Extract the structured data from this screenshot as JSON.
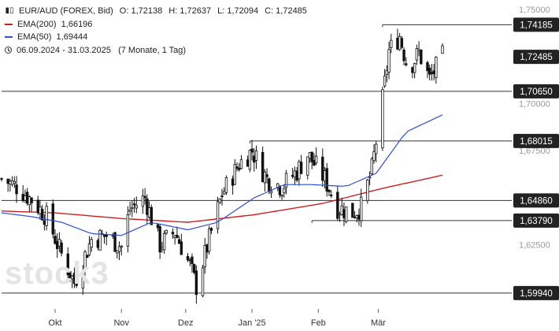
{
  "legend": {
    "symbol": "EUR/AUD (FOREX, Bid)",
    "open_label": "O:",
    "open": "1,72138",
    "high_label": "H:",
    "high": "1,72637",
    "low_label": "L:",
    "low": "1,72094",
    "close_label": "C:",
    "close": "1,72485",
    "ema200_label": "EMA(200)",
    "ema200_value": "1,66196",
    "ema50_label": "EMA(50)",
    "ema50_value": "1,69444",
    "period": "06.09.2024 - 31.03.2025",
    "period_detail": "(7 Monate, 1 Tag)"
  },
  "watermark": "stock3",
  "colors": {
    "ema200": "#cc1f1f",
    "ema50": "#2d4fd6",
    "candle": "#111111",
    "level_line": "#333333",
    "tag_bg": "#222222"
  },
  "chart_data": {
    "type": "candlestick",
    "y_range": [
      1.591,
      1.755
    ],
    "y_ticks": [
      {
        "value": 1.75,
        "label": "1,75000"
      },
      {
        "value": 1.7,
        "label": "1,70000"
      },
      {
        "value": 1.675,
        "label": "1,67500"
      },
      {
        "value": 1.625,
        "label": "1,62500"
      }
    ],
    "x_ticks": [
      {
        "date": "2024-10-01",
        "label": "Okt"
      },
      {
        "date": "2024-11-01",
        "label": "Nov"
      },
      {
        "date": "2024-12-01",
        "label": "Dez"
      },
      {
        "date": "2025-01-01",
        "label": "Jan '25"
      },
      {
        "date": "2025-02-01",
        "label": "Feb"
      },
      {
        "date": "2025-03-01",
        "label": "Mär"
      }
    ],
    "levels": [
      {
        "value": 1.74185,
        "label": "1,74185",
        "from": "2025-03-03"
      },
      {
        "value": 1.72485,
        "label": "1,72485",
        "from": null
      },
      {
        "value": 1.7065,
        "label": "1,70650",
        "from": "2024-09-06"
      },
      {
        "value": 1.68015,
        "label": "1,68015",
        "from": "2024-12-31"
      },
      {
        "value": 1.6486,
        "label": "1,64860",
        "from": "2024-09-06"
      },
      {
        "value": 1.6379,
        "label": "1,63790",
        "from": "2025-01-29"
      },
      {
        "value": 1.5994,
        "label": "1,59940",
        "from": "2024-09-06"
      }
    ],
    "ema50": [
      [
        "2024-09-06",
        1.642
      ],
      [
        "2024-09-20",
        1.64
      ],
      [
        "2024-10-04",
        1.637
      ],
      [
        "2024-10-18",
        1.631
      ],
      [
        "2024-11-01",
        1.63
      ],
      [
        "2024-11-15",
        1.637
      ],
      [
        "2024-12-02",
        1.633
      ],
      [
        "2024-12-16",
        1.637
      ],
      [
        "2025-01-02",
        1.65
      ],
      [
        "2025-01-16",
        1.657
      ],
      [
        "2025-01-29",
        1.657
      ],
      [
        "2025-02-14",
        1.656
      ],
      [
        "2025-02-28",
        1.663
      ],
      [
        "2025-03-14",
        1.685
      ],
      [
        "2025-03-31",
        1.694
      ]
    ],
    "ema200": [
      [
        "2024-09-06",
        1.643
      ],
      [
        "2024-10-01",
        1.642
      ],
      [
        "2024-11-01",
        1.639
      ],
      [
        "2024-12-02",
        1.637
      ],
      [
        "2025-01-02",
        1.641
      ],
      [
        "2025-02-03",
        1.647
      ],
      [
        "2025-03-03",
        1.655
      ],
      [
        "2025-03-31",
        1.662
      ]
    ],
    "price_path": [
      [
        "2024-09-06",
        1.66
      ],
      [
        "2024-09-13",
        1.656
      ],
      [
        "2024-09-20",
        1.649
      ],
      [
        "2024-09-27",
        1.64
      ],
      [
        "2024-10-04",
        1.62
      ],
      [
        "2024-10-10",
        1.605
      ],
      [
        "2024-10-18",
        1.628
      ],
      [
        "2024-10-25",
        1.63
      ],
      [
        "2024-11-01",
        1.624
      ],
      [
        "2024-11-05",
        1.644
      ],
      [
        "2024-11-12",
        1.65
      ],
      [
        "2024-11-19",
        1.625
      ],
      [
        "2024-11-26",
        1.632
      ],
      [
        "2024-12-03",
        1.614
      ],
      [
        "2024-12-06",
        1.603
      ],
      [
        "2024-12-12",
        1.628
      ],
      [
        "2024-12-18",
        1.652
      ],
      [
        "2024-12-26",
        1.668
      ],
      [
        "2025-01-01",
        1.675
      ],
      [
        "2025-01-08",
        1.66
      ],
      [
        "2025-01-15",
        1.656
      ],
      [
        "2025-01-22",
        1.664
      ],
      [
        "2025-01-27",
        1.673
      ],
      [
        "2025-02-04",
        1.66
      ],
      [
        "2025-02-10",
        1.645
      ],
      [
        "2025-02-17",
        1.642
      ],
      [
        "2025-02-21",
        1.645
      ],
      [
        "2025-02-26",
        1.665
      ],
      [
        "2025-03-03",
        1.702
      ],
      [
        "2025-03-06",
        1.728
      ],
      [
        "2025-03-11",
        1.736
      ],
      [
        "2025-03-15",
        1.718
      ],
      [
        "2025-03-20",
        1.727
      ],
      [
        "2025-03-25",
        1.713
      ],
      [
        "2025-03-31",
        1.725
      ]
    ]
  }
}
